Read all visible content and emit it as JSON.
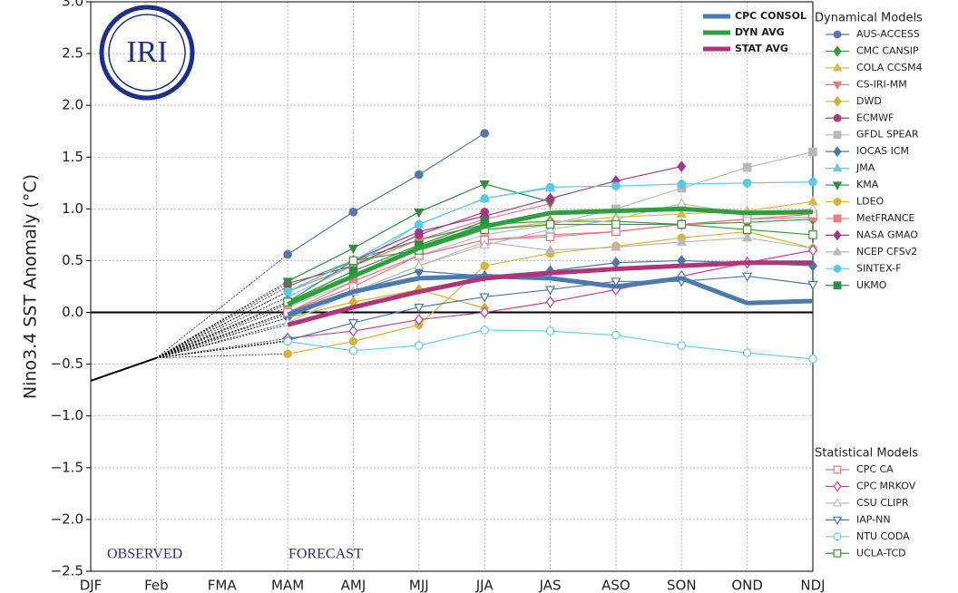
{
  "chart_data": {
    "type": "line",
    "logo": "IRI",
    "ylabel": "Nino3.4 SST Anomaly (°C)",
    "categories": [
      "DJF",
      "Feb",
      "FMA",
      "MAM",
      "AMJ",
      "MJJ",
      "JJA",
      "JAS",
      "ASO",
      "SON",
      "OND",
      "NDJ"
    ],
    "ylim": [
      -2.5,
      3.0
    ],
    "yticks": [
      {
        "value": -2.5,
        "label": "−2.5"
      },
      {
        "value": -2,
        "label": "−2.0"
      },
      {
        "value": -1.5,
        "label": "−1.5"
      },
      {
        "value": -1,
        "label": "−1.0"
      },
      {
        "value": -0.5,
        "label": "−0.5"
      },
      {
        "value": 0,
        "label": "0.0"
      },
      {
        "value": 0.5,
        "label": "0.5"
      },
      {
        "value": 1,
        "label": "1.0"
      },
      {
        "value": 1.5,
        "label": "1.5"
      },
      {
        "value": 2,
        "label": "2.0"
      },
      {
        "value": 2.5,
        "label": "2.5"
      },
      {
        "value": 3,
        "label": "3.0"
      }
    ],
    "grid": true,
    "observed": {
      "color": "#000000",
      "values": [
        -0.66,
        -0.44,
        null,
        null,
        null,
        null,
        null,
        null,
        null,
        null,
        null,
        null
      ]
    },
    "annotations": [
      "OBSERVED",
      "FORECAST"
    ],
    "legend_groups": [
      "Dynamical Models",
      "Statistical Models"
    ],
    "series": [
      {
        "name": "CPC CONSOL",
        "color": "#4a7ab0",
        "width": 5,
        "values": [
          null,
          null,
          null,
          -0.02,
          0.2,
          0.33,
          0.35,
          0.33,
          0.25,
          0.33,
          0.09,
          0.11
        ]
      },
      {
        "name": "DYN AVG",
        "color": "#2e9e3e",
        "width": 5,
        "values": [
          null,
          null,
          null,
          0.08,
          0.35,
          0.62,
          0.83,
          0.96,
          0.98,
          1.0,
          0.96,
          0.97
        ]
      },
      {
        "name": "STAT AVG",
        "color": "#b0347a",
        "width": 5,
        "values": [
          null,
          null,
          null,
          -0.12,
          0.05,
          0.2,
          0.33,
          0.38,
          0.42,
          0.45,
          0.48,
          0.48
        ]
      },
      {
        "name": "AUS-ACCESS",
        "group": 0,
        "marker": "circle",
        "filled": true,
        "color": "#5576b0",
        "values": [
          null,
          null,
          null,
          0.56,
          0.97,
          1.33,
          1.73,
          null,
          null,
          null,
          null,
          null
        ]
      },
      {
        "name": "CMC CANSIP",
        "group": 0,
        "marker": "diamond",
        "filled": true,
        "color": "#2e9e3e",
        "values": [
          null,
          null,
          null,
          0.25,
          0.5,
          0.7,
          0.85,
          0.88,
          0.88,
          0.85,
          0.87,
          0.9
        ]
      },
      {
        "name": "COLA CCSM4",
        "group": 0,
        "marker": "triangle-up",
        "filled": true,
        "color": "#d6b94a",
        "values": [
          null,
          null,
          null,
          0.1,
          0.35,
          0.6,
          0.8,
          0.87,
          0.92,
          0.95,
          0.98,
          1.07
        ]
      },
      {
        "name": "CS-IRI-MM",
        "group": 0,
        "marker": "triangle-down",
        "filled": true,
        "color": "#e87a7a",
        "values": [
          null,
          null,
          null,
          0.2,
          0.45,
          0.7,
          0.9,
          1.05,
          null,
          null,
          null,
          null
        ]
      },
      {
        "name": "DWD",
        "group": 0,
        "marker": "diamond",
        "filled": true,
        "color": "#d4b030",
        "values": [
          null,
          null,
          null,
          -0.05,
          0.1,
          0.22,
          0.04,
          null,
          null,
          null,
          null,
          null
        ]
      },
      {
        "name": "ECMWF",
        "group": 0,
        "marker": "circle",
        "filled": true,
        "color": "#b03a78",
        "values": [
          null,
          null,
          null,
          0.28,
          0.45,
          0.75,
          0.97,
          null,
          null,
          null,
          null,
          null
        ]
      },
      {
        "name": "GFDL SPEAR",
        "group": 0,
        "marker": "square",
        "filled": true,
        "color": "#b8b8b8",
        "values": [
          null,
          null,
          null,
          0.05,
          0.3,
          0.55,
          0.75,
          0.85,
          1.0,
          1.2,
          1.4,
          1.55
        ]
      },
      {
        "name": "IOCAS ICM",
        "group": 0,
        "marker": "diamond",
        "filled": true,
        "color": "#4a78a8",
        "values": [
          null,
          null,
          null,
          -0.05,
          0.2,
          0.4,
          0.35,
          0.4,
          0.48,
          0.5,
          0.48,
          0.45
        ]
      },
      {
        "name": "JMA",
        "group": 0,
        "marker": "triangle-up",
        "filled": true,
        "color": "#6ec8e0",
        "values": [
          null,
          null,
          null,
          0.15,
          0.45,
          0.85,
          1.1,
          1.2,
          null,
          null,
          null,
          null
        ]
      },
      {
        "name": "KMA",
        "group": 0,
        "marker": "triangle-down",
        "filled": true,
        "color": "#2e8e3e",
        "values": [
          null,
          null,
          null,
          0.3,
          0.62,
          0.97,
          1.24,
          1.07,
          null,
          null,
          null,
          null
        ]
      },
      {
        "name": "LDEO",
        "group": 0,
        "marker": "circle",
        "filled": true,
        "color": "#d6b53c",
        "values": [
          null,
          null,
          null,
          -0.4,
          -0.28,
          -0.12,
          0.45,
          0.57,
          0.64,
          0.72,
          0.78,
          0.62
        ]
      },
      {
        "name": "MetFRANCE",
        "group": 0,
        "marker": "square",
        "filled": true,
        "color": "#ef7f7f",
        "values": [
          null,
          null,
          null,
          0.0,
          0.3,
          0.55,
          0.7,
          0.75,
          0.78,
          0.85,
          0.9,
          0.92
        ]
      },
      {
        "name": "NASA GMAO",
        "group": 0,
        "marker": "diamond",
        "filled": true,
        "color": "#9e3a8e",
        "values": [
          null,
          null,
          null,
          0.2,
          0.5,
          0.78,
          0.93,
          1.1,
          1.27,
          1.41,
          null,
          null
        ]
      },
      {
        "name": "NCEP CFSv2",
        "group": 0,
        "marker": "triangle-up",
        "filled": true,
        "color": "#b8b8b8",
        "values": [
          null,
          null,
          null,
          0.0,
          0.2,
          0.45,
          0.68,
          0.6,
          0.63,
          0.68,
          0.72,
          0.62
        ]
      },
      {
        "name": "SINTEX-F",
        "group": 0,
        "marker": "circle",
        "filled": true,
        "color": "#5ac8e8",
        "values": [
          null,
          null,
          null,
          0.2,
          0.5,
          0.85,
          1.1,
          1.21,
          1.22,
          1.24,
          1.25,
          1.26
        ]
      },
      {
        "name": "UKMO",
        "group": 0,
        "marker": "square",
        "filled": true,
        "color": "#2e8e3e",
        "values": [
          null,
          null,
          null,
          0.1,
          0.4,
          0.65,
          0.88,
          null,
          null,
          null,
          null,
          null
        ]
      },
      {
        "name": "CPC CA",
        "group": 1,
        "marker": "square",
        "filled": false,
        "color": "#e07a8a",
        "values": [
          null,
          null,
          null,
          0.0,
          0.25,
          0.55,
          0.7,
          0.73,
          0.78,
          0.85,
          0.9,
          0.95
        ]
      },
      {
        "name": "CPC MRKOV",
        "group": 1,
        "marker": "diamond",
        "filled": false,
        "color": "#c0409a",
        "values": [
          null,
          null,
          null,
          -0.25,
          -0.18,
          -0.07,
          0.0,
          0.1,
          0.22,
          0.35,
          0.48,
          0.6
        ]
      },
      {
        "name": "CSU CLIPR",
        "group": 1,
        "marker": "triangle-up",
        "filled": false,
        "color": "#bbbbbb",
        "values": [
          null,
          null,
          null,
          -0.1,
          0.2,
          0.45,
          0.65,
          0.8,
          0.9,
          1.05,
          0.95,
          1.0
        ]
      },
      {
        "name": "IAP-NN",
        "group": 1,
        "marker": "triangle-down",
        "filled": false,
        "color": "#4a78a8",
        "values": [
          null,
          null,
          null,
          -0.27,
          -0.1,
          0.05,
          0.15,
          0.22,
          0.3,
          0.3,
          0.35,
          0.27
        ]
      },
      {
        "name": "NTU CODA",
        "group": 1,
        "marker": "circle",
        "filled": false,
        "color": "#6ccce8",
        "values": [
          null,
          null,
          null,
          -0.28,
          -0.37,
          -0.32,
          -0.17,
          -0.18,
          -0.22,
          -0.32,
          -0.39,
          -0.45
        ]
      },
      {
        "name": "UCLA-TCD",
        "group": 1,
        "marker": "square",
        "filled": false,
        "color": "#3a9a3a",
        "values": [
          null,
          null,
          null,
          0.1,
          0.5,
          0.6,
          0.8,
          0.85,
          0.85,
          0.85,
          0.8,
          0.75
        ]
      }
    ]
  }
}
